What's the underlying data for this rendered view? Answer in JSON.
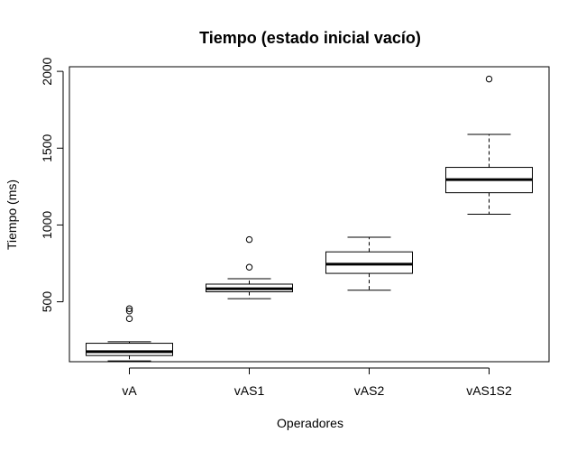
{
  "chart_data": {
    "type": "boxplot",
    "title": "Tiempo (estado inicial vacío)",
    "xlabel": "Operadores",
    "ylabel": "Tiempo (ms)",
    "ylim": [
      110,
      2030
    ],
    "y_ticks": [
      500,
      1000,
      1500,
      2000
    ],
    "categories": [
      "vA",
      "vAS1",
      "vAS2",
      "vAS1S2"
    ],
    "boxes": [
      {
        "category": "vA",
        "whisker_low": 115,
        "q1": 150,
        "median": 175,
        "q3": 230,
        "whisker_high": 240,
        "outliers": [
          390,
          440,
          455
        ]
      },
      {
        "category": "vAS1",
        "whisker_low": 520,
        "q1": 565,
        "median": 585,
        "q3": 615,
        "whisker_high": 650,
        "outliers": [
          725,
          905
        ]
      },
      {
        "category": "vAS2",
        "whisker_low": 575,
        "q1": 685,
        "median": 745,
        "q3": 825,
        "whisker_high": 920,
        "outliers": []
      },
      {
        "category": "vAS1S2",
        "whisker_low": 1070,
        "q1": 1210,
        "median": 1295,
        "q3": 1375,
        "whisker_high": 1590,
        "outliers": [
          1950
        ]
      }
    ],
    "grid": false,
    "legend": "none"
  }
}
